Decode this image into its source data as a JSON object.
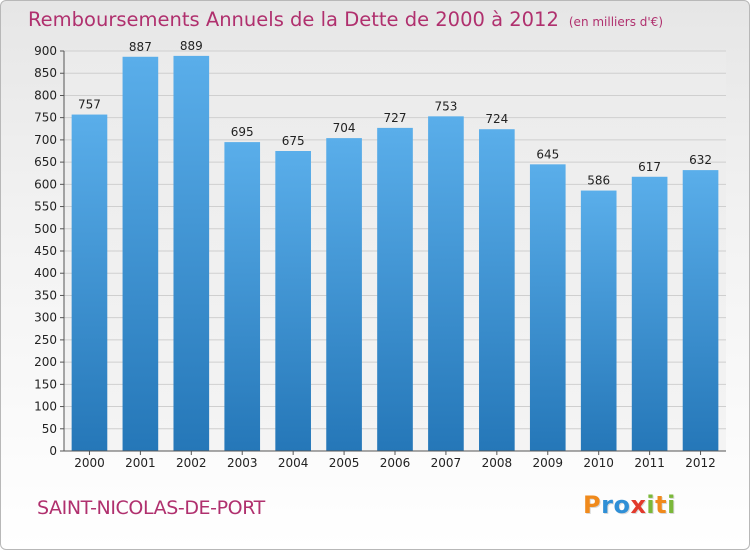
{
  "title": "Remboursements Annuels de la Dette de 2000 à 2012",
  "unit": "(en milliers d'€)",
  "town": "SAINT-NICOLAS-DE-PORT",
  "logo": {
    "text": "Proxiti",
    "letters": [
      {
        "ch": "P",
        "color": "#f08a1c"
      },
      {
        "ch": "r",
        "color": "#2f8fd6"
      },
      {
        "ch": "o",
        "color": "#2f8fd6"
      },
      {
        "ch": "x",
        "color": "#e23a2c"
      },
      {
        "ch": "i",
        "color": "#7bb83a"
      },
      {
        "ch": "t",
        "color": "#f08a1c"
      },
      {
        "ch": "i",
        "color": "#7bb83a"
      }
    ]
  },
  "colors": {
    "bar_top": "#5aaeea",
    "bar_bottom": "#2577b8",
    "title": "#b0306e",
    "grid": "#cfcfcf",
    "axis_text": "#222222"
  },
  "chart_data": {
    "type": "bar",
    "title": "Remboursements Annuels de la Dette de 2000 à 2012",
    "subtitle": "(en milliers d'€)",
    "xlabel": "",
    "ylabel": "",
    "categories": [
      "2000",
      "2001",
      "2002",
      "2003",
      "2004",
      "2005",
      "2006",
      "2007",
      "2008",
      "2009",
      "2010",
      "2011",
      "2012"
    ],
    "values": [
      757,
      887,
      889,
      695,
      675,
      704,
      727,
      753,
      724,
      645,
      586,
      617,
      632
    ],
    "ylim": [
      0,
      900
    ],
    "ytick_step": 50,
    "grid": true,
    "legend": "none",
    "data_labels": true
  }
}
